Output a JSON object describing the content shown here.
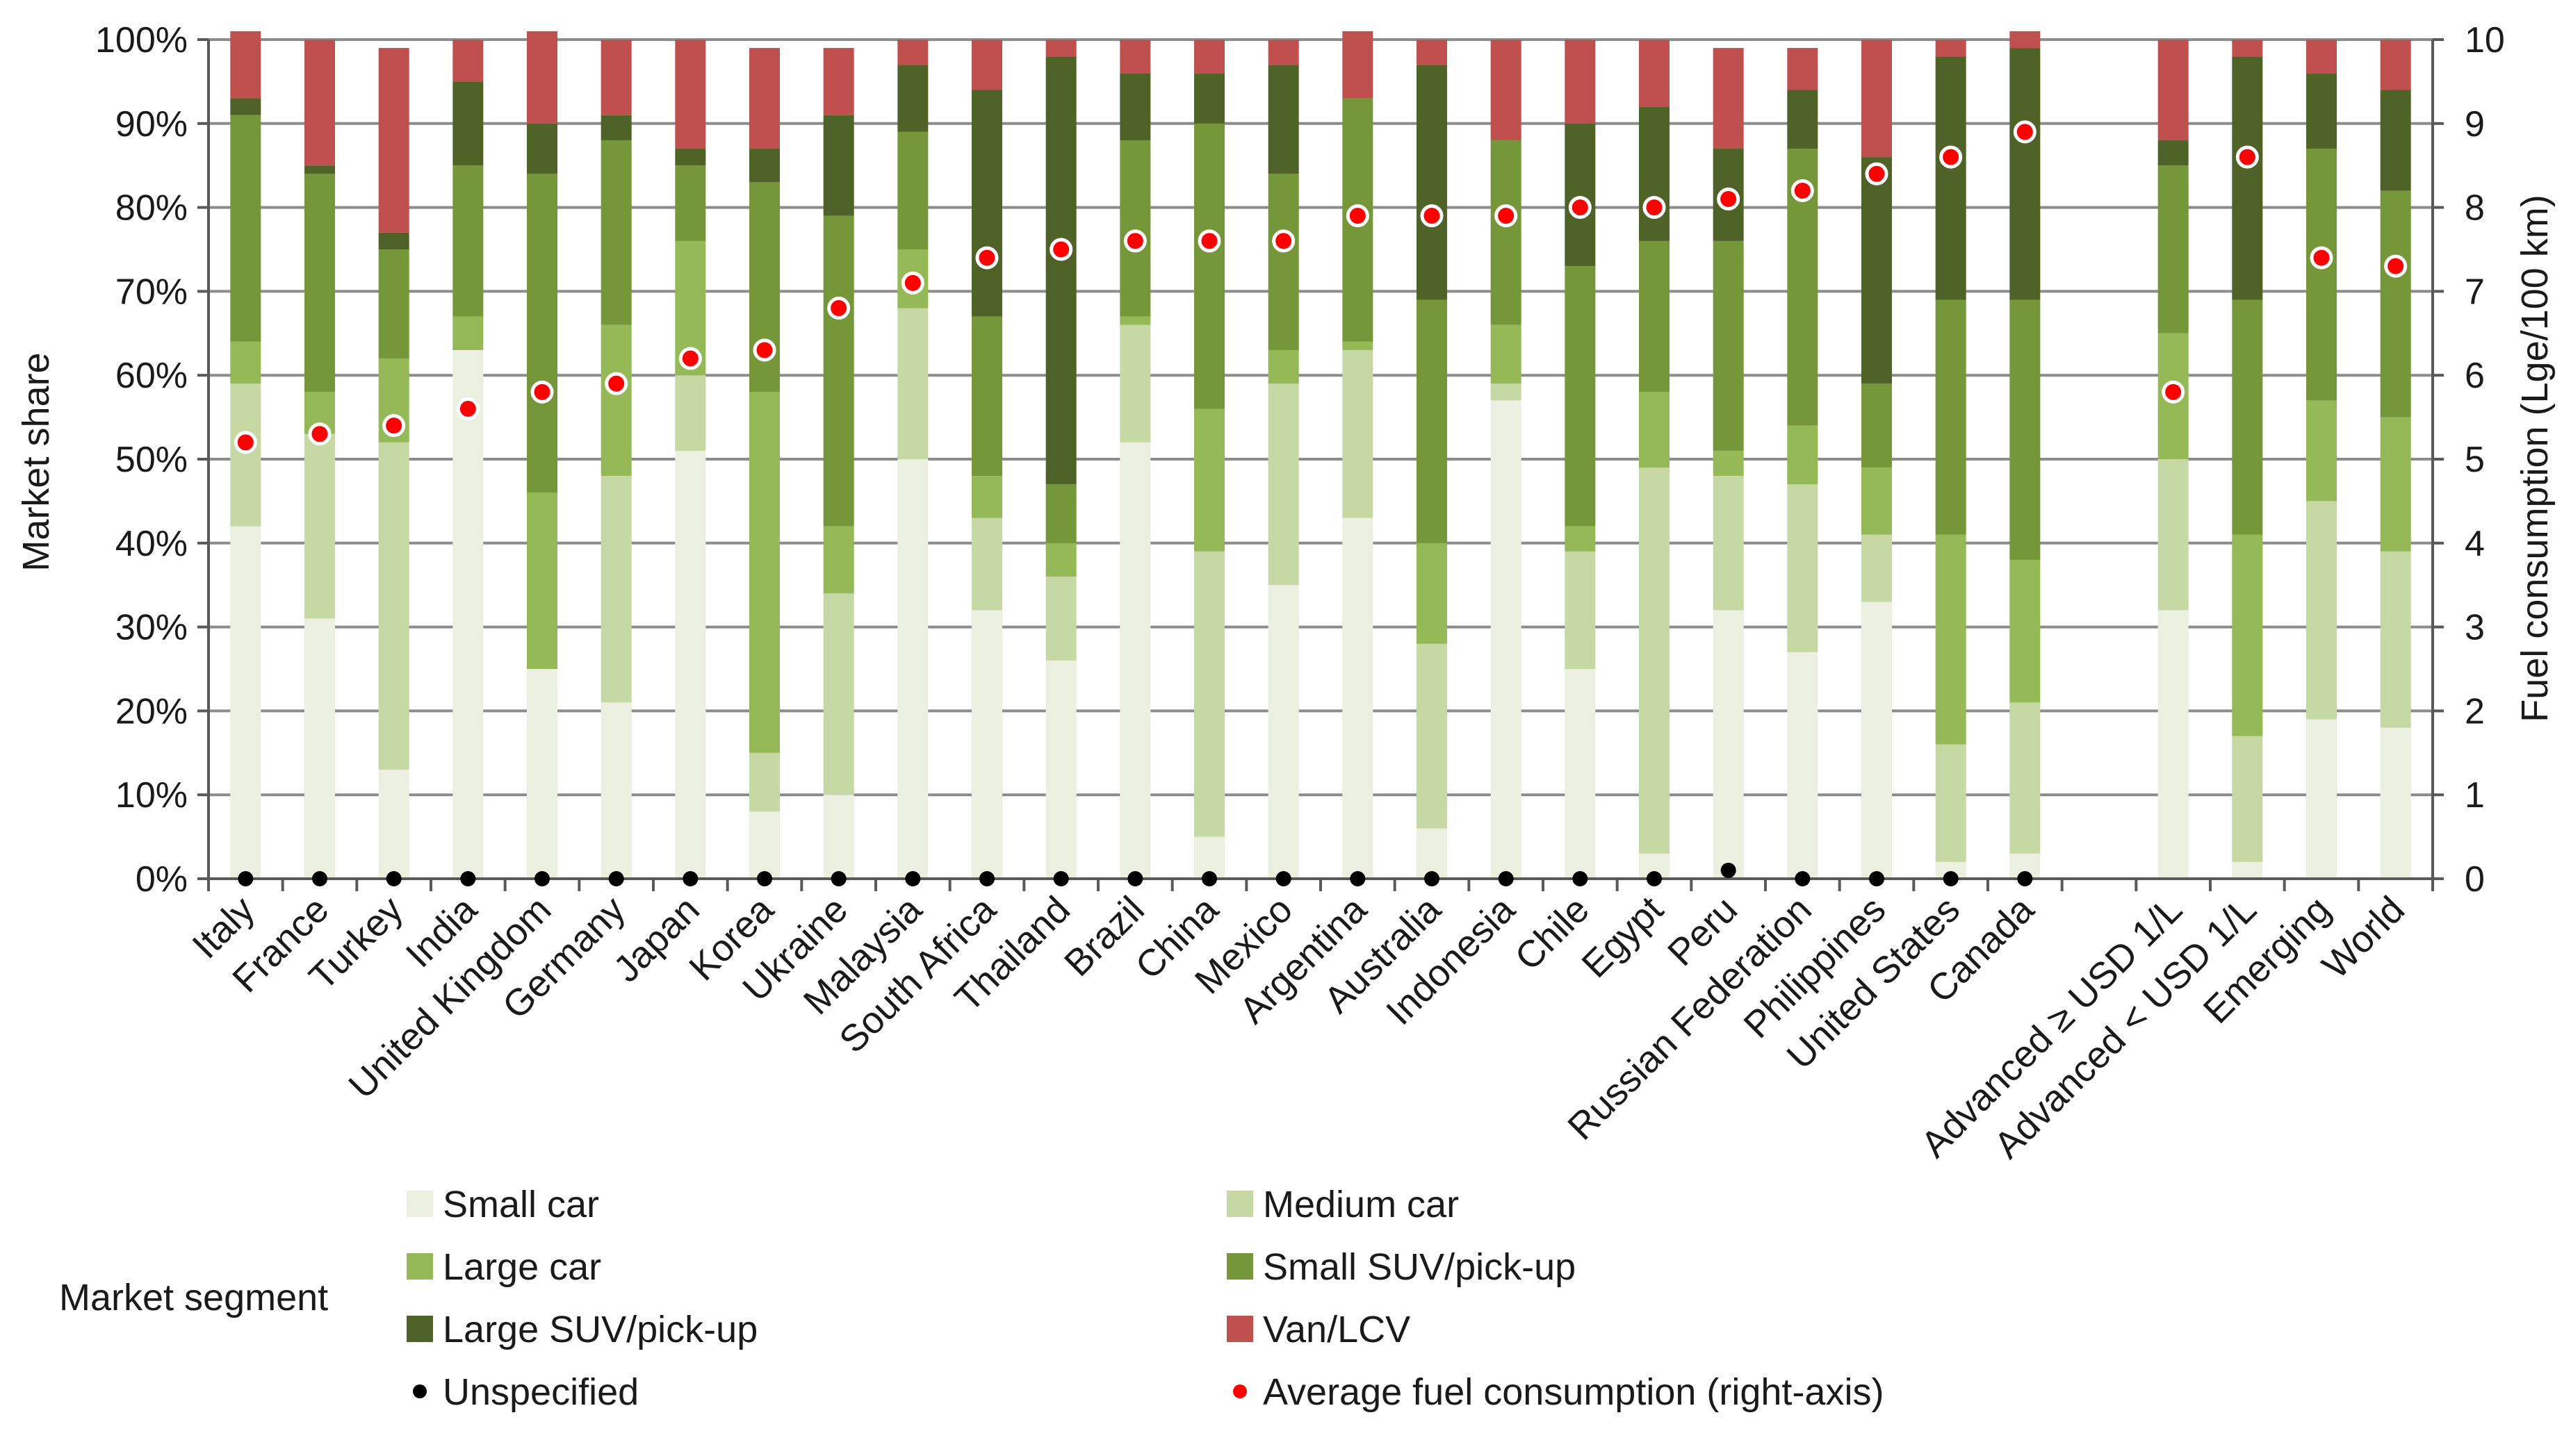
{
  "chart_data": {
    "type": "bar",
    "stacked": true,
    "categories": [
      "Italy",
      "France",
      "Turkey",
      "India",
      "United Kingdom",
      "Germany",
      "Japan",
      "Korea",
      "Ukraine",
      "Malaysia",
      "South Africa",
      "Thailand",
      "Brazil",
      "China",
      "Mexico",
      "Argentina",
      "Australia",
      "Indonesia",
      "Chile",
      "Egypt",
      "Peru",
      "Russian Federation",
      "Philippines",
      "United States",
      "Canada",
      "",
      "Advanced ≥ USD 1/L",
      "Advanced < USD 1/L",
      "Emerging",
      "World"
    ],
    "series": [
      {
        "name": "Small car",
        "color": "#ecf0e0",
        "values": [
          42,
          31,
          13,
          63,
          25,
          21,
          51,
          8,
          10,
          50,
          32,
          26,
          52,
          5,
          35,
          43,
          6,
          57,
          25,
          3,
          32,
          27,
          33,
          2,
          3,
          null,
          32,
          2,
          19,
          18
        ]
      },
      {
        "name": "Medium car",
        "color": "#c6d8a3",
        "values": [
          17,
          22,
          39,
          0,
          0,
          27,
          9,
          7,
          24,
          18,
          11,
          10,
          14,
          34,
          24,
          20,
          22,
          2,
          14,
          46,
          16,
          20,
          8,
          14,
          18,
          null,
          18,
          15,
          26,
          21
        ]
      },
      {
        "name": "Large car",
        "color": "#95b957",
        "values": [
          5,
          5,
          10,
          4,
          21,
          18,
          16,
          43,
          8,
          7,
          5,
          4,
          1,
          17,
          4,
          1,
          12,
          7,
          3,
          9,
          3,
          7,
          8,
          25,
          17,
          null,
          15,
          24,
          12,
          16
        ]
      },
      {
        "name": "Small SUV/pick-up",
        "color": "#76963a",
        "values": [
          27,
          26,
          13,
          18,
          38,
          22,
          9,
          25,
          37,
          14,
          19,
          7,
          21,
          34,
          21,
          29,
          29,
          22,
          31,
          18,
          25,
          33,
          10,
          28,
          31,
          null,
          20,
          28,
          30,
          27
        ]
      },
      {
        "name": "Large SUV/pick-up",
        "color": "#4f6228",
        "values": [
          2,
          1,
          2,
          10,
          6,
          3,
          2,
          4,
          12,
          8,
          27,
          51,
          8,
          6,
          13,
          0,
          28,
          0,
          17,
          16,
          11,
          7,
          27,
          29,
          30,
          null,
          3,
          29,
          9,
          12
        ]
      },
      {
        "name": "Van/LCV",
        "color": "#c0504d",
        "values": [
          8,
          15,
          22,
          5,
          11,
          9,
          13,
          12,
          8,
          3,
          6,
          2,
          4,
          4,
          3,
          8,
          3,
          12,
          10,
          8,
          12,
          5,
          14,
          2,
          2,
          null,
          12,
          2,
          4,
          6
        ]
      }
    ],
    "unspecified": [
      0,
      0,
      0,
      0,
      0,
      0,
      0,
      0,
      0,
      0,
      0,
      0,
      0,
      0,
      0,
      0,
      0,
      0,
      0,
      0,
      1,
      0,
      0,
      0,
      0,
      null,
      null,
      null,
      null,
      null
    ],
    "avg_fuel_consumption": [
      5.2,
      5.3,
      5.4,
      5.6,
      5.8,
      5.9,
      6.2,
      6.3,
      6.8,
      7.1,
      7.4,
      7.5,
      7.6,
      7.6,
      7.6,
      7.9,
      7.9,
      7.9,
      8.0,
      8.0,
      8.1,
      8.2,
      8.4,
      8.6,
      8.9,
      null,
      5.8,
      8.6,
      7.4,
      7.3
    ],
    "ylabel": "Market share",
    "y2label": "Fuel consumption (Lge/100 km)",
    "ylim": [
      0,
      100
    ],
    "y2lim": [
      0,
      10
    ],
    "yticks": [
      "0%",
      "10%",
      "20%",
      "30%",
      "40%",
      "50%",
      "60%",
      "70%",
      "80%",
      "90%",
      "100%"
    ],
    "y2ticks": [
      "0",
      "1",
      "2",
      "3",
      "4",
      "5",
      "6",
      "7",
      "8",
      "9",
      "10"
    ],
    "grid": true,
    "legend": {
      "title": "Market segment",
      "position": "bottom",
      "items": [
        {
          "label": "Small car",
          "kind": "square",
          "color": "#ecf0e0"
        },
        {
          "label": "Medium car",
          "kind": "square",
          "color": "#c6d8a3"
        },
        {
          "label": "Large car",
          "kind": "square",
          "color": "#95b957"
        },
        {
          "label": "Small SUV/pick-up",
          "kind": "square",
          "color": "#76963a"
        },
        {
          "label": "Large SUV/pick-up",
          "kind": "square",
          "color": "#4f6228"
        },
        {
          "label": "Van/LCV",
          "kind": "square",
          "color": "#c0504d"
        },
        {
          "label": "Unspecified",
          "kind": "dot",
          "color": "#000000"
        },
        {
          "label": "Average fuel consumption (right-axis)",
          "kind": "dot",
          "color": "#ff0000"
        }
      ]
    }
  }
}
